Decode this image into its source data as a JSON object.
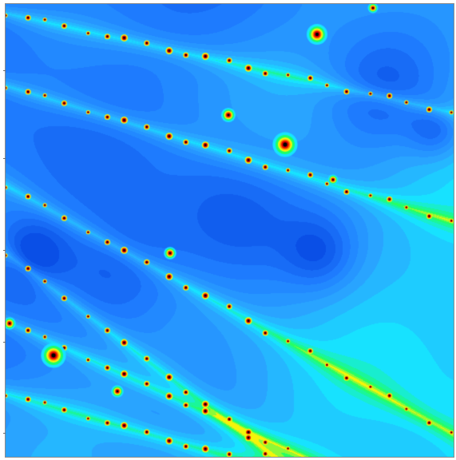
{
  "image": {
    "subject": "fractal-rendering",
    "palette": {
      "deep": "#0a4fe6",
      "blue": "#1f7cff",
      "light_blue": "#2aa8ff",
      "cyan": "#16e4ff",
      "green": "#1cff6a",
      "yellow": "#f4f40a",
      "orange": "#ff7a00",
      "red": "#e30000",
      "black": "#000000"
    }
  }
}
